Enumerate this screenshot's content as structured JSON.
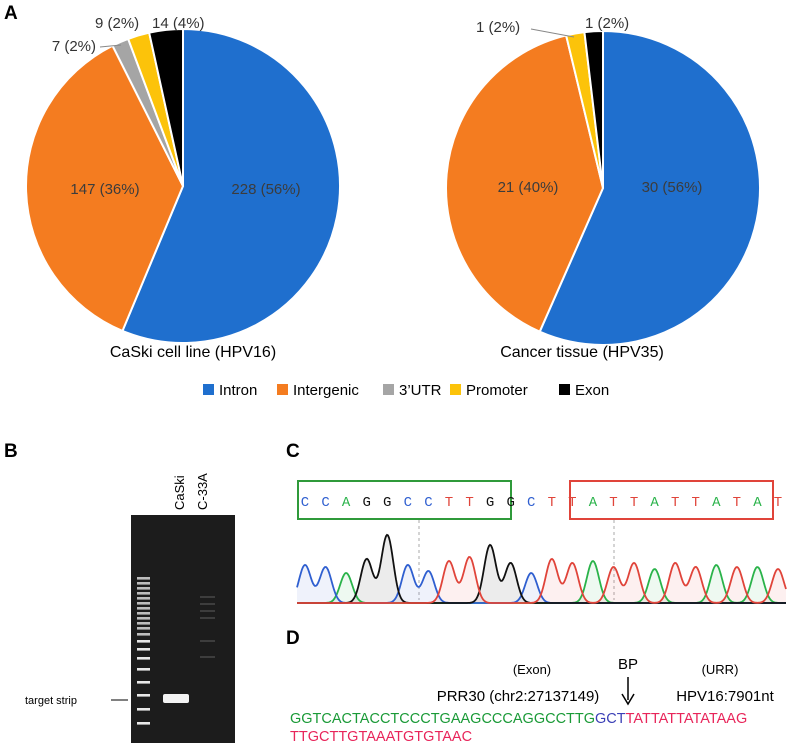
{
  "panels": {
    "a": "A",
    "b": "B",
    "c": "C",
    "d": "D"
  },
  "colors": {
    "Intron": "#1f6fce",
    "Intergenic": "#f47c20",
    "3'UTR": "#a5a5a5",
    "Promoter": "#fcc30a",
    "Exon": "#000000"
  },
  "legend": [
    {
      "label": "Intron",
      "color": "#1f6fce"
    },
    {
      "label": "Intergenic",
      "color": "#f47c20"
    },
    {
      "label": "3’UTR",
      "color": "#a5a5a5"
    },
    {
      "label": "Promoter",
      "color": "#fcc30a"
    },
    {
      "label": "Exon",
      "color": "#000000"
    }
  ],
  "chart_data": [
    {
      "type": "pie",
      "title": "CaSki cell line (HPV16)",
      "categories": [
        "Intron",
        "Intergenic",
        "3'UTR",
        "Promoter",
        "Exon"
      ],
      "values": [
        228,
        147,
        7,
        9,
        14
      ],
      "labels": [
        "228 (56%)",
        "147 (36%)",
        "7 (2%)",
        "9 (2%)",
        "14 (4%)"
      ]
    },
    {
      "type": "pie",
      "title": "Cancer tissue (HPV35)",
      "categories": [
        "Intron",
        "Intergenic",
        "3'UTR",
        "Promoter",
        "Exon"
      ],
      "values": [
        30,
        21,
        0,
        1,
        1
      ],
      "labels": [
        "30 (56%)",
        "21 (40%)",
        "",
        "1 (2%)",
        "1 (2%)"
      ]
    }
  ],
  "gel": {
    "lanes": [
      "CaSki",
      "C-33A"
    ],
    "band_label": "target strip"
  },
  "chromatogram": {
    "bases": [
      "C",
      "C",
      "A",
      "G",
      "G",
      "C",
      "C",
      "T",
      "T",
      "G",
      "G",
      "C",
      "T",
      "T",
      "A",
      "T",
      "T",
      "A",
      "T",
      "T",
      "A",
      "T",
      "A",
      "T"
    ]
  },
  "panel_d": {
    "exon_label": "(Exon)",
    "bp_label": "BP",
    "urr_label": "(URR)",
    "prr_label": "PRR30 (chr2:27137149)",
    "hpv_label": "HPV16:7901nt",
    "seq_green": "GGTCACTACCTCCCTGAAGCCCAGGCCTTG",
    "seq_blue": "GCT",
    "seq_red1": "TATTATTATATAAG",
    "seq_red2": "TTGCTTGTAAATGTGTAAC"
  }
}
